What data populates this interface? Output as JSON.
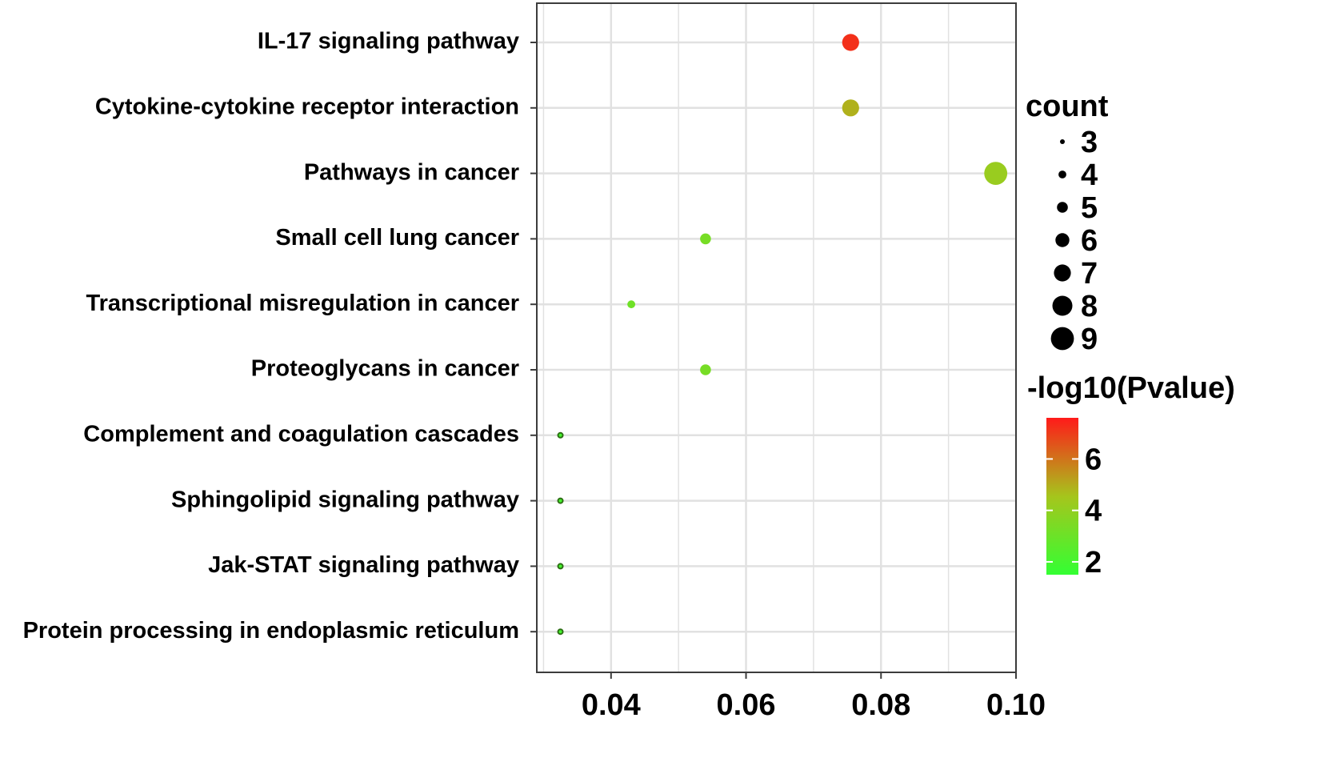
{
  "chart_data": {
    "type": "scatter",
    "title": "",
    "xlabel": "",
    "ylabel": "",
    "xlim": [
      0.029,
      0.1
    ],
    "xticks": [
      0.04,
      0.06,
      0.08,
      0.1
    ],
    "xtick_labels": [
      "0.04",
      "0.06",
      "0.08",
      "0.10"
    ],
    "grid": true,
    "categories": [
      "IL-17 signaling pathway",
      "Cytokine-cytokine receptor interaction",
      "Pathways in cancer",
      "Small cell lung cancer",
      "Transcriptional misregulation in cancer",
      "Proteoglycans in cancer",
      "Complement and coagulation cascades",
      "Sphingolipid signaling pathway",
      "Jak-STAT signaling pathway",
      "Protein processing in endoplasmic reticulum"
    ],
    "points": [
      {
        "category": "IL-17 signaling pathway",
        "x": 0.0755,
        "count": 7,
        "neg_log10_pvalue": 7.2
      },
      {
        "category": "Cytokine-cytokine receptor interaction",
        "x": 0.0755,
        "count": 7,
        "neg_log10_pvalue": 4.9
      },
      {
        "category": "Pathways in cancer",
        "x": 0.097,
        "count": 9,
        "neg_log10_pvalue": 4.2
      },
      {
        "category": "Small cell lung cancer",
        "x": 0.054,
        "count": 5,
        "neg_log10_pvalue": 3.3
      },
      {
        "category": "Transcriptional misregulation in cancer",
        "x": 0.043,
        "count": 4,
        "neg_log10_pvalue": 3.1
      },
      {
        "category": "Proteoglycans in cancer",
        "x": 0.054,
        "count": 5,
        "neg_log10_pvalue": 3.3
      },
      {
        "category": "Complement and coagulation cascades",
        "x": 0.0325,
        "count": 3,
        "neg_log10_pvalue": 2.0
      },
      {
        "category": "Sphingolipid signaling pathway",
        "x": 0.0325,
        "count": 3,
        "neg_log10_pvalue": 2.0
      },
      {
        "category": "Jak-STAT signaling pathway",
        "x": 0.0325,
        "count": 3,
        "neg_log10_pvalue": 2.0
      },
      {
        "category": "Protein processing in endoplasmic reticulum",
        "x": 0.0325,
        "count": 3,
        "neg_log10_pvalue": 2.0
      }
    ],
    "size_legend": {
      "title": "count",
      "values": [
        3,
        4,
        5,
        6,
        7,
        8,
        9
      ]
    },
    "color_legend": {
      "title": "-log10(Pvalue)",
      "range": [
        1.5,
        7.6
      ],
      "ticks": [
        2,
        4,
        6
      ],
      "tick_labels": [
        "2",
        "4",
        "6"
      ],
      "colors": {
        "low": "#33ff33",
        "mid": "#a6c51c",
        "high": "#ff1a1a"
      }
    },
    "style": {
      "grid_color": "#e1e1e1",
      "axis_color": "#3c3c3c",
      "point_outline": "#2c6e13"
    }
  }
}
